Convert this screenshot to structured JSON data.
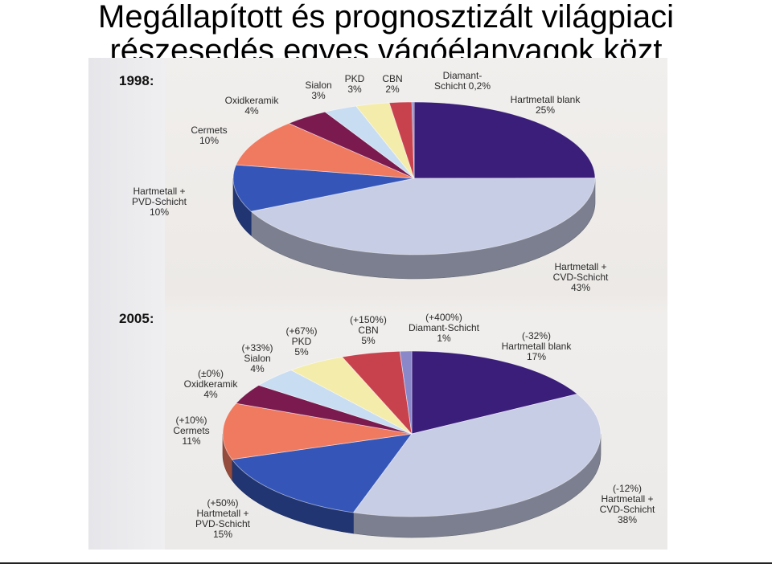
{
  "title": {
    "line1": "Megállapított és prognosztizált világpiaci",
    "line2": "részesedés egyes vágóélanyagok közt"
  },
  "chart_data": [
    {
      "type": "pie",
      "panel": "1998:",
      "slices": [
        {
          "label": "Hartmetall blank",
          "value": 25,
          "display": "25%",
          "color": "#3a1e7a"
        },
        {
          "label": "Hartmetall + CVD-Schicht",
          "value": 43,
          "display": "43%",
          "color": "#c8cde6"
        },
        {
          "label": "Hartmetall + PVD-Schicht",
          "value": 10,
          "display": "10%",
          "color": "#3556b8"
        },
        {
          "label": "Cermets",
          "value": 10,
          "display": "10%",
          "color": "#f07a60"
        },
        {
          "label": "Oxidkeramik",
          "value": 4,
          "display": "4%",
          "color": "#7a1a4e"
        },
        {
          "label": "Sialon",
          "value": 3,
          "display": "3%",
          "color": "#c9ddf2"
        },
        {
          "label": "PKD",
          "value": 3,
          "display": "3%",
          "color": "#f4ecab"
        },
        {
          "label": "CBN",
          "value": 2,
          "display": "2%",
          "color": "#c8424e"
        },
        {
          "label": "Diamant-Schicht",
          "value": 0.2,
          "display": "0,2%",
          "color": "#8a88c8"
        }
      ],
      "label_text": [
        [
          "Hartmetall blank",
          "25%"
        ],
        [
          "Hartmetall +",
          "CVD-Schicht",
          "43%"
        ],
        [
          "Hartmetall +",
          "PVD-Schicht",
          "10%"
        ],
        [
          "Cermets",
          "10%"
        ],
        [
          "Oxidkeramik",
          "4%"
        ],
        [
          "Sialon",
          "3%"
        ],
        [
          "PKD",
          "3%"
        ],
        [
          "CBN",
          "2%"
        ],
        [
          "Diamant-",
          "Schicht 0,2%"
        ]
      ]
    },
    {
      "type": "pie",
      "panel": "2005:",
      "slices": [
        {
          "label": "Hartmetall blank",
          "value": 17,
          "display": "17%",
          "change": "(-32%)",
          "color": "#3a1e7a"
        },
        {
          "label": "Hartmetall + CVD-Schicht",
          "value": 38,
          "display": "38%",
          "change": "(-12%)",
          "color": "#c8cde6"
        },
        {
          "label": "Hartmetall + PVD-Schicht",
          "value": 15,
          "display": "15%",
          "change": "(+50%)",
          "color": "#3556b8"
        },
        {
          "label": "Cermets",
          "value": 11,
          "display": "11%",
          "change": "(+10%)",
          "color": "#f07a60"
        },
        {
          "label": "Oxidkeramik",
          "value": 4,
          "display": "4%",
          "change": "(±0%)",
          "color": "#7a1a4e"
        },
        {
          "label": "Sialon",
          "value": 4,
          "display": "4%",
          "change": "(+33%)",
          "color": "#c9ddf2"
        },
        {
          "label": "PKD",
          "value": 5,
          "display": "5%",
          "change": "(+67%)",
          "color": "#f4ecab"
        },
        {
          "label": "CBN",
          "value": 5,
          "display": "5%",
          "change": "(+150%)",
          "color": "#c8424e"
        },
        {
          "label": "Diamant-Schicht",
          "value": 1,
          "display": "1%",
          "change": "(+400%)",
          "color": "#8a88c8"
        }
      ],
      "label_text": [
        [
          "(-32%)",
          "Hartmetall blank",
          "17%"
        ],
        [
          "(-12%)",
          "Hartmetall +",
          "CVD-Schicht",
          "38%"
        ],
        [
          "(+50%)",
          "Hartmetall +",
          "PVD-Schicht",
          "15%"
        ],
        [
          "(+10%)",
          "Cermets",
          "11%"
        ],
        [
          "(±0%)",
          "Oxidkeramik",
          "4%"
        ],
        [
          "(+33%)",
          "Sialon",
          "4%"
        ],
        [
          "(+67%)",
          "PKD",
          "5%"
        ],
        [
          "(+150%)",
          "CBN",
          "5%"
        ],
        [
          "(+400%)",
          "Diamant-Schicht",
          "1%"
        ]
      ]
    }
  ]
}
